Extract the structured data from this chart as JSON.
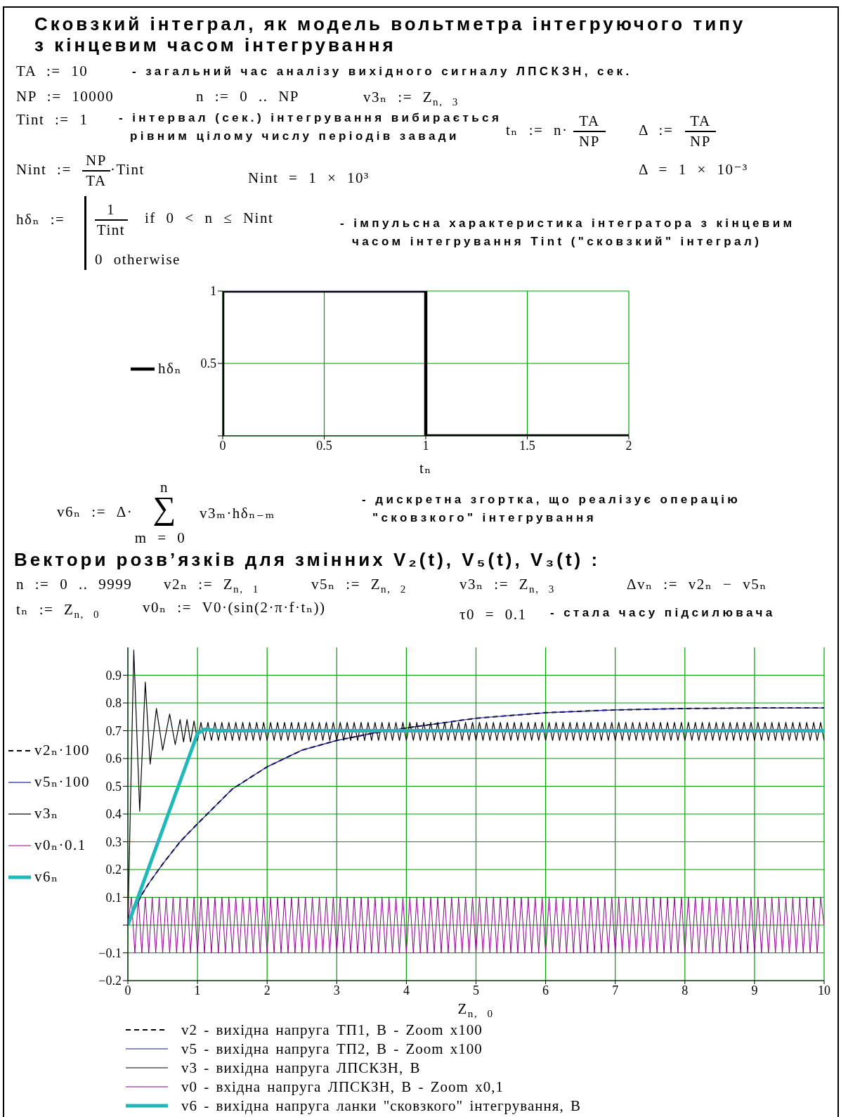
{
  "chart_data": [
    {
      "type": "line",
      "title": "Сковзкий інтеграл, як модель вольтметра інтегруючого типу з кінцевим часом інтегрування",
      "xlabel": "tₙ",
      "x": [
        0,
        0,
        1,
        1,
        2
      ],
      "series": [
        {
          "name": "hδₙ",
          "color": "#000000",
          "values": [
            0,
            1,
            1,
            0,
            0
          ]
        }
      ],
      "xlim": [
        0,
        2
      ],
      "xticks": [
        0,
        0.5,
        1,
        1.5,
        2
      ],
      "ylim": [
        0,
        1
      ],
      "yticks": [
        {
          "value": 0,
          "label": null
        },
        0.5,
        1
      ],
      "grid": true,
      "legend": "left",
      "annotations": [
        "TA := 10",
        "- загальний час аналізу вихідного сигналу ЛПСКЗН, сек.",
        "NP := 10000",
        "n := 0 .. NP",
        "v3ₙ := Z$_{n, 3}$",
        "Tint := 1",
        "- інтервал (сек.) інтегрування вибирається рівним цілому числу періодів завади",
        "tₙ := n·",
        "TA",
        "NP",
        "Δ :=",
        "TA",
        "NP",
        "Nint :=",
        "NP",
        "TA",
        "·Tint",
        "Nint = 1 × 10³",
        "Δ = 1 × 10⁻³",
        "hδₙ :=",
        "1",
        "Tint",
        "if 0 < n ≤ Nint",
        "0 otherwise",
        "- імпульсна характеристика інтегратора з кінцевим часом інтегрування Tint (\"сковзкий\" інтеграл)",
        "v6ₙ := Δ·",
        "n",
        "∑",
        "m = 0",
        "v3ₘ·hδₙ₋ₘ",
        "- дискретна згортка, що реалізує операцію \"сковзкого\" інтегрування"
      ]
    },
    {
      "type": "line",
      "title": "Вектори розв’язків для змінних V₂(t), V₅(t), V₃(t) :",
      "xlabel": "Z$_{n, 0}$",
      "x": [
        0,
        0.05,
        0.1,
        0.15,
        0.2,
        0.25,
        0.3,
        0.35,
        0.4,
        0.45,
        0.5,
        0.55,
        0.6,
        0.65,
        0.7,
        0.75,
        0.8,
        0.85,
        0.9,
        0.95,
        1,
        1.05,
        1.1,
        1.15,
        1.2,
        1.25,
        1.3,
        1.35,
        1.4,
        1.45,
        1.5,
        1.55,
        1.6,
        1.65,
        1.7,
        1.75,
        1.8,
        1.85,
        1.9,
        1.95,
        2,
        2.05,
        2.1,
        2.15,
        2.2,
        2.25,
        2.3,
        2.35,
        2.4,
        2.45,
        2.5,
        2.55,
        2.6,
        2.65,
        2.7,
        2.75,
        2.8,
        2.85,
        2.9,
        2.95,
        3,
        3.05,
        3.1,
        3.15,
        3.2,
        3.25,
        3.3,
        3.35,
        3.4,
        3.45,
        3.5,
        3.55,
        3.6,
        3.65,
        3.7,
        3.75,
        3.8,
        3.85,
        3.9,
        3.95,
        4,
        4.05,
        4.1,
        4.15,
        4.2,
        4.25,
        4.3,
        4.35,
        4.4,
        4.45,
        4.5,
        4.55,
        4.6,
        4.65,
        4.7,
        4.75,
        4.8,
        4.85,
        4.9,
        4.95,
        5,
        5.05,
        5.1,
        5.15,
        5.2,
        5.25,
        5.3,
        5.35,
        5.4,
        5.45,
        5.5,
        5.55,
        5.6,
        5.65,
        5.7,
        5.75,
        5.8,
        5.85,
        5.9,
        5.95,
        6,
        6.05,
        6.1,
        6.15,
        6.2,
        6.25,
        6.3,
        6.35,
        6.4,
        6.45,
        6.5,
        6.55,
        6.6,
        6.65,
        6.7,
        6.75,
        6.8,
        6.85,
        6.9,
        6.95,
        7,
        7.05,
        7.1,
        7.15,
        7.2,
        7.25,
        7.3,
        7.35,
        7.4,
        7.45,
        7.5,
        7.55,
        7.6,
        7.65,
        7.7,
        7.75,
        7.8,
        7.85,
        7.9,
        7.95,
        8,
        8.05,
        8.1,
        8.15,
        8.2,
        8.25,
        8.3,
        8.35,
        8.4,
        8.45,
        8.5,
        8.55,
        8.6,
        8.65,
        8.7,
        8.75,
        8.8,
        8.85,
        8.9,
        8.95,
        9,
        9.05,
        9.1,
        9.15,
        9.2,
        9.25,
        9.3,
        9.35,
        9.4,
        9.45,
        9.5,
        9.55,
        9.6,
        9.65,
        9.7,
        9.75,
        9.8,
        9.85,
        9.9,
        9.95,
        10
      ],
      "xlim": [
        0,
        10
      ],
      "xticks": [
        0,
        1,
        2,
        3,
        4,
        5,
        6,
        7,
        8,
        9,
        10
      ],
      "ylim": [
        -0.2,
        1
      ],
      "yticks": [
        -0.2,
        -0.1,
        {
          "value": 0,
          "label": null
        },
        0.1,
        0.2,
        0.3,
        0.4,
        0.5,
        0.6,
        0.7,
        0.8,
        0.9
      ],
      "grid": true,
      "legend": "left",
      "line_style": "solid",
      "series": [
        {
          "name": "v2ₙ·100",
          "color": "#000000",
          "line_style": "dashed",
          "x": [
            0,
            0.1,
            0.2,
            0.3,
            0.5,
            0.75,
            1,
            1.5,
            2,
            2.5,
            3,
            3.5,
            4,
            5,
            6,
            7,
            8,
            9,
            10
          ],
          "values": [
            0,
            0.06,
            0.11,
            0.15,
            0.22,
            0.3,
            0.365,
            0.49,
            0.57,
            0.63,
            0.665,
            0.69,
            0.71,
            0.745,
            0.765,
            0.775,
            0.78,
            0.782,
            0.782
          ]
        },
        {
          "name": "v5ₙ·100",
          "color": "#1a1a8c",
          "x": [
            0,
            0.1,
            0.2,
            0.3,
            0.5,
            0.75,
            1,
            1.5,
            2,
            2.5,
            3,
            3.5,
            4,
            5,
            6,
            7,
            8,
            9,
            10
          ],
          "values": [
            0,
            0.06,
            0.11,
            0.15,
            0.22,
            0.3,
            0.365,
            0.49,
            0.57,
            0.63,
            0.665,
            0.69,
            0.71,
            0.745,
            0.765,
            0.775,
            0.78,
            0.782,
            0.782
          ]
        },
        {
          "name": "v3ₙ",
          "color": "#000000",
          "x": [
            0,
            0.085,
            0.17,
            0.25,
            0.32,
            0.41,
            0.5,
            0.6,
            0.68,
            0.75,
            0.8,
            0.85,
            0.9,
            0.95,
            1,
            1.05,
            1.1,
            1.15,
            1.2,
            1.25,
            1.3,
            1.35,
            1.4,
            1.45,
            1.5,
            1.55,
            1.6,
            1.65,
            1.7,
            1.75,
            1.8,
            1.85,
            1.9,
            1.95,
            2,
            2.05,
            2.1,
            2.15,
            2.2,
            2.25,
            2.3,
            2.35,
            2.4,
            2.45,
            2.5,
            2.55,
            2.6,
            2.65,
            2.7,
            2.75,
            2.8,
            2.85,
            2.9,
            2.95,
            3,
            3.05,
            3.1,
            3.15,
            3.2,
            3.25,
            3.3,
            3.35,
            3.4,
            3.45,
            3.5,
            3.55,
            3.6,
            3.65,
            3.7,
            3.75,
            3.8,
            3.85,
            3.9,
            3.95,
            4,
            4.05,
            4.1,
            4.15,
            4.2,
            4.25,
            4.3,
            4.35,
            4.4,
            4.45,
            4.5,
            4.55,
            4.6,
            4.65,
            4.7,
            4.75,
            4.8,
            4.85,
            4.9,
            4.95,
            5,
            5.05,
            5.1,
            5.15,
            5.2,
            5.25,
            5.3,
            5.35,
            5.4,
            5.45,
            5.5,
            5.55,
            5.6,
            5.65,
            5.7,
            5.75,
            5.8,
            5.85,
            5.9,
            5.95,
            6,
            6.05,
            6.1,
            6.15,
            6.2,
            6.25,
            6.3,
            6.35,
            6.4,
            6.45,
            6.5,
            6.55,
            6.6,
            6.65,
            6.7,
            6.75,
            6.8,
            6.85,
            6.9,
            6.95,
            7,
            7.05,
            7.1,
            7.15,
            7.2,
            7.25,
            7.3,
            7.35,
            7.4,
            7.45,
            7.5,
            7.55,
            7.6,
            7.65,
            7.7,
            7.75,
            7.8,
            7.85,
            7.9,
            7.95,
            8,
            8.05,
            8.1,
            8.15,
            8.2,
            8.25,
            8.3,
            8.35,
            8.4,
            8.45,
            8.5,
            8.55,
            8.6,
            8.65,
            8.7,
            8.75,
            8.8,
            8.85,
            8.9,
            8.95,
            9,
            9.05,
            9.1,
            9.15,
            9.2,
            9.25,
            9.3,
            9.35,
            9.4,
            9.45,
            9.5,
            9.55,
            9.6,
            9.65,
            9.7,
            9.75,
            9.8,
            9.85,
            9.9,
            9.95,
            10
          ],
          "values": [
            0,
            0.99,
            0.41,
            0.875,
            0.58,
            0.78,
            0.63,
            0.76,
            0.65,
            0.74,
            0.66,
            0.74,
            0.66,
            0.735,
            0.665,
            0.73,
            0.665,
            0.73,
            0.665,
            0.73,
            0.665,
            0.73,
            0.665,
            0.73,
            0.665,
            0.73,
            0.665,
            0.73,
            0.665,
            0.73,
            0.665,
            0.73,
            0.665,
            0.73,
            0.665,
            0.73,
            0.665,
            0.73,
            0.665,
            0.73,
            0.665,
            0.73,
            0.665,
            0.73,
            0.665,
            0.73,
            0.665,
            0.73,
            0.665,
            0.73,
            0.665,
            0.73,
            0.665,
            0.73,
            0.665,
            0.73,
            0.665,
            0.73,
            0.665,
            0.73,
            0.665,
            0.73,
            0.665,
            0.73,
            0.665,
            0.73,
            0.665,
            0.73,
            0.665,
            0.73,
            0.665,
            0.73,
            0.665,
            0.73,
            0.665,
            0.73,
            0.665,
            0.73,
            0.665,
            0.73,
            0.665,
            0.73,
            0.665,
            0.73,
            0.665,
            0.73,
            0.665,
            0.73,
            0.665,
            0.73,
            0.665,
            0.73,
            0.665,
            0.73,
            0.665,
            0.73,
            0.665,
            0.73,
            0.665,
            0.73,
            0.665,
            0.73,
            0.665,
            0.73,
            0.665,
            0.73,
            0.665,
            0.73,
            0.665,
            0.73,
            0.665,
            0.73,
            0.665,
            0.73,
            0.665,
            0.73,
            0.665,
            0.73,
            0.665,
            0.73,
            0.665,
            0.73,
            0.665,
            0.73,
            0.665,
            0.73,
            0.665,
            0.73,
            0.665,
            0.73,
            0.665,
            0.73,
            0.665,
            0.73,
            0.665,
            0.73,
            0.665,
            0.73,
            0.665,
            0.73,
            0.665,
            0.73,
            0.665,
            0.73,
            0.665,
            0.73,
            0.665,
            0.73,
            0.665,
            0.73,
            0.665,
            0.73,
            0.665,
            0.73,
            0.665,
            0.73,
            0.665,
            0.73,
            0.665,
            0.73,
            0.665,
            0.73,
            0.665,
            0.73,
            0.665,
            0.73,
            0.665,
            0.73,
            0.665,
            0.73,
            0.665,
            0.73,
            0.665,
            0.73,
            0.665,
            0.73,
            0.665,
            0.73,
            0.665,
            0.73,
            0.665,
            0.73,
            0.665,
            0.73,
            0.665,
            0.73,
            0.665,
            0.73,
            0.665,
            0.73,
            0.665,
            0.73,
            0.665,
            0.73,
            0.665
          ]
        },
        {
          "name": "v0ₙ·0.1",
          "color": "#8b008b",
          "values": [
            0,
            0.1,
            -0.1,
            0.1,
            -0.1,
            0.1,
            -0.1,
            0.1,
            -0.1,
            0.1,
            -0.1,
            0.1,
            -0.1,
            0.1,
            -0.1,
            0.1,
            -0.1,
            0.1,
            -0.1,
            0.1,
            -0.1,
            0.1,
            -0.1,
            0.1,
            -0.1,
            0.1,
            -0.1,
            0.1,
            -0.1,
            0.1,
            -0.1,
            0.1,
            -0.1,
            0.1,
            -0.1,
            0.1,
            -0.1,
            0.1,
            -0.1,
            0.1,
            -0.1,
            0.1,
            -0.1,
            0.1,
            -0.1,
            0.1,
            -0.1,
            0.1,
            -0.1,
            0.1,
            -0.1,
            0.1,
            -0.1,
            0.1,
            -0.1,
            0.1,
            -0.1,
            0.1,
            -0.1,
            0.1,
            -0.1,
            0.1,
            -0.1,
            0.1,
            -0.1,
            0.1,
            -0.1,
            0.1,
            -0.1,
            0.1,
            -0.1,
            0.1,
            -0.1,
            0.1,
            -0.1,
            0.1,
            -0.1,
            0.1,
            -0.1,
            0.1,
            -0.1,
            0.1,
            -0.1,
            0.1,
            -0.1,
            0.1,
            -0.1,
            0.1,
            -0.1,
            0.1,
            -0.1,
            0.1,
            -0.1,
            0.1,
            -0.1,
            0.1,
            -0.1,
            0.1,
            -0.1,
            0.1,
            -0.1,
            0.1,
            -0.1,
            0.1,
            -0.1,
            0.1,
            -0.1,
            0.1,
            -0.1,
            0.1,
            -0.1,
            0.1,
            -0.1,
            0.1,
            -0.1,
            0.1,
            -0.1,
            0.1,
            -0.1,
            0.1,
            -0.1,
            0.1,
            -0.1,
            0.1,
            -0.1,
            0.1,
            -0.1,
            0.1,
            -0.1,
            0.1,
            -0.1,
            0.1,
            -0.1,
            0.1,
            -0.1,
            0.1,
            -0.1,
            0.1,
            -0.1,
            0.1,
            -0.1,
            0.1,
            -0.1,
            0.1,
            -0.1,
            0.1,
            -0.1,
            0.1,
            -0.1,
            0.1,
            -0.1,
            0.1,
            -0.1,
            0.1,
            -0.1,
            0.1,
            -0.1,
            0.1,
            -0.1,
            0.1,
            -0.1,
            0.1,
            -0.1,
            0.1,
            -0.1,
            0.1,
            -0.1,
            0.1,
            -0.1,
            0.1,
            -0.1,
            0.1,
            -0.1,
            0.1,
            -0.1,
            0.1,
            -0.1,
            0.1,
            -0.1,
            0.1,
            -0.1,
            0.1,
            -0.1,
            0.1,
            -0.1,
            0.1,
            -0.1,
            0.1,
            -0.1,
            0.1,
            -0.1,
            0.1,
            -0.1,
            0.1,
            -0.1,
            0.1,
            -0.1,
            0.1,
            -0.1,
            0.1,
            0
          ]
        },
        {
          "name": "v6ₙ",
          "color": "#20b8b8",
          "x": [
            0,
            1,
            1.1,
            1.3,
            10
          ],
          "values": [
            0,
            0.69,
            0.705,
            0.7,
            0.7
          ]
        }
      ],
      "annotations": [
        "n := 0 .. 9999",
        "v2ₙ := Z$_{n, 1}$",
        "v5ₙ := Z$_{n, 2}$",
        "v3ₙ := Z$_{n, 3}$",
        "Δvₙ := v2ₙ − v5ₙ",
        "tₙ := Z$_{n, 0}$",
        "v0ₙ := V0·(sin(2·π·f·tₙ))",
        "τ0 = 0.1",
        "- стала часу підсилювача",
        "v2 - вихідна напруга ТП1, В - Zoom x100",
        "v5 - вихідна напруга ТП2, В - Zoom x100",
        "v3 - вихідна напруга ЛПСКЗН, В",
        "v0 - вхідна напруга ЛПСКЗН, В - Zoom x0,1",
        "v6 - вихідна напруга ланки \"сковзкого\" інтегрування, В"
      ]
    }
  ]
}
